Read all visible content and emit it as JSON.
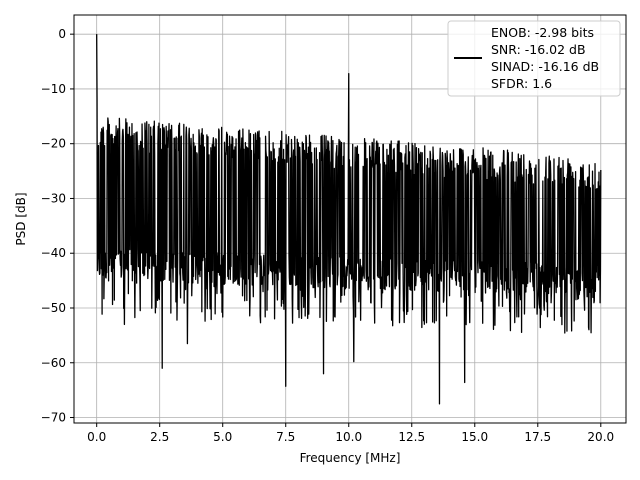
{
  "chart_data": {
    "type": "line",
    "xlabel": "Frequency [MHz]",
    "ylabel": "PSD [dB]",
    "xlim": [
      -0.9,
      21.0
    ],
    "ylim": [
      -71.0,
      3.5
    ],
    "xticks": [
      0.0,
      2.5,
      5.0,
      7.5,
      10.0,
      12.5,
      15.0,
      17.5,
      20.0
    ],
    "xtick_labels": [
      "0.0",
      "2.5",
      "5.0",
      "7.5",
      "10.0",
      "12.5",
      "15.0",
      "17.5",
      "20.0"
    ],
    "yticks": [
      0,
      -10,
      -20,
      -30,
      -40,
      -50,
      -60,
      -70
    ],
    "ytick_labels": [
      "0",
      "−10",
      "−20",
      "−30",
      "−40",
      "−50",
      "−60",
      "−70"
    ],
    "grid": true,
    "legend_placement": "top-right",
    "series": [
      {
        "name": "ENOB: -2.98 bits\nSNR: -16.02 dB\nSINAD: -16.16 dB\nSFDR: 1.6",
        "color": "#000000",
        "description_of_values": "noise-like power spectral density",
        "dc_peak": {
          "x": 0.0,
          "y": 0.0
        },
        "spur": {
          "x": 10.0,
          "y": -7.2
        },
        "noise_band_upper_start": -15.0,
        "noise_band_upper_end": -22.5,
        "noise_band_lower_start": -45.0,
        "noise_band_lower_end": -48.0,
        "notable_minima": [
          {
            "x": 2.6,
            "y": -61.0
          },
          {
            "x": 7.5,
            "y": -64.3
          },
          {
            "x": 9.0,
            "y": -62.0
          },
          {
            "x": 13.6,
            "y": -67.5
          },
          {
            "x": 14.6,
            "y": -63.6
          },
          {
            "x": 10.2,
            "y": -59.8
          },
          {
            "x": 3.6,
            "y": -56.5
          },
          {
            "x": 1.1,
            "y": -53.0
          }
        ]
      }
    ],
    "legend_lines": [
      "ENOB: -2.98 bits",
      "SNR: -16.02 dB",
      "SINAD: -16.16 dB",
      "SFDR: 1.6"
    ]
  }
}
